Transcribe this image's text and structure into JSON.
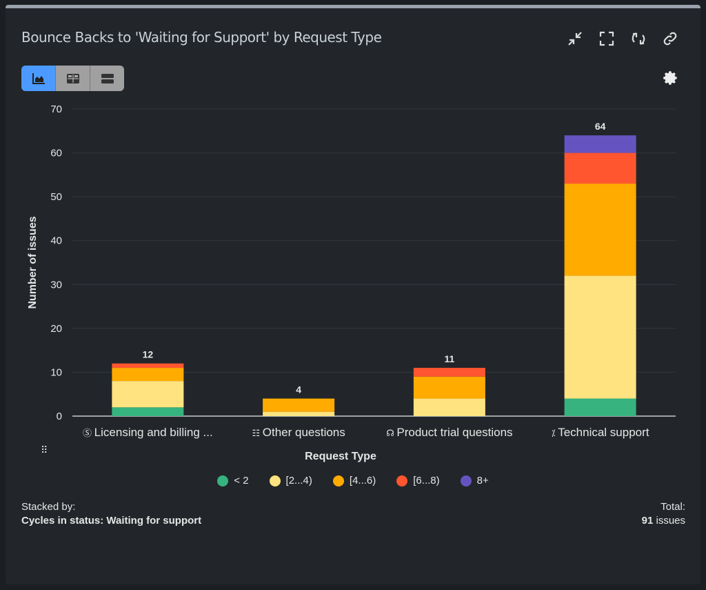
{
  "header": {
    "title": "Bounce Backs to 'Waiting for Support' by Request Type"
  },
  "chart_data": {
    "type": "bar",
    "stacked": true,
    "xlabel": "Request Type",
    "ylabel": "Number of issues",
    "ylim": [
      0,
      70
    ],
    "yticks": [
      0,
      10,
      20,
      30,
      40,
      50,
      60,
      70
    ],
    "grid": true,
    "legend_position": "bottom",
    "categories": [
      "Licensing and billing ...",
      "Other questions",
      "Product trial questions",
      "Technical support"
    ],
    "category_icons": [
      "dollar-circle-icon",
      "message-icon",
      "headset-icon",
      "tools-icon"
    ],
    "totals": [
      "12",
      "4",
      "11",
      "64"
    ],
    "series": [
      {
        "name": "< 2",
        "color": "#36b37e",
        "values": [
          2,
          0,
          0,
          4
        ]
      },
      {
        "name": "[2...4)",
        "color": "#ffe380",
        "values": [
          6,
          1,
          4,
          28
        ]
      },
      {
        "name": "[4...6)",
        "color": "#ffab00",
        "values": [
          3,
          3,
          5,
          21
        ]
      },
      {
        "name": "[6...8)",
        "color": "#ff5630",
        "values": [
          1,
          0,
          2,
          7
        ]
      },
      {
        "name": "8+",
        "color": "#6554c0",
        "values": [
          0,
          0,
          0,
          4
        ]
      }
    ]
  },
  "footer": {
    "stacked_by_label": "Stacked by:",
    "stacked_by_value": "Cycles in status: Waiting for support",
    "total_label": "Total:",
    "total_count": "91",
    "total_unit": " issues"
  }
}
